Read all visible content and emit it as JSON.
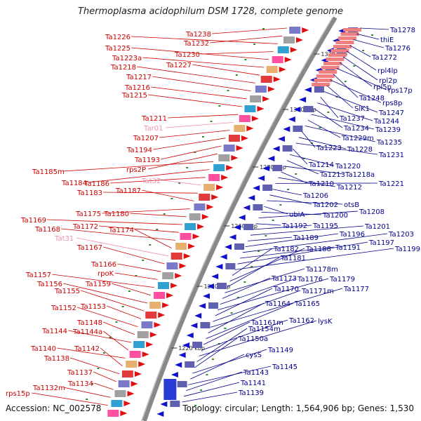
{
  "title": "Thermoplasma acidophilum DSM 1728, complete genome",
  "accession": "Accession: NC_002578",
  "topology": "Topology: circular; Length: 1,564,906 bp; Genes: 1,530",
  "colors": {
    "left_label": "#cc0000",
    "right_label": "#00008b",
    "rna_label": "#f08fb0",
    "backbone": "#888888"
  },
  "scale_labels": [
    "1320 kbp",
    "1300 kbp",
    "1280 kbp",
    "1260 kbp",
    "1240 kbp",
    "1220 kbp"
  ],
  "left_labels": [
    "Ta1238",
    "Ta1232",
    "Ta1226",
    "Ta1230",
    "Ta1225",
    "Ta1223a",
    "Ta1227",
    "Ta1218",
    "Ta1217",
    "Ta1216",
    "Ta1215",
    "Ta1211",
    "Tar01",
    "Ta1207",
    "Ta1194",
    "Ta1193",
    "rps2P",
    "Ta1185m",
    "Ta1184",
    "Ta1186",
    "Tat32",
    "Ta1183",
    "Ta1187",
    "Ta1175",
    "Ta1180",
    "Ta1169",
    "Ta1172",
    "Ta1168",
    "Ta1174",
    "Tat31",
    "Ta1167",
    "Ta1166",
    "rpoK",
    "Ta1157",
    "Ta1159",
    "Ta1156",
    "Ta1155",
    "Ta1153",
    "Ta1152",
    "Ta1148",
    "Ta1144",
    "Ta1144a",
    "Ta1140",
    "Ta1142",
    "Ta1138",
    "Ta1137",
    "Ta1134",
    "Ta1132m",
    "rps15p"
  ],
  "right_labels": [
    "Ta1278",
    "thiE",
    "Ta1276",
    "Ta1272",
    "rpl4lp",
    "rpl2p",
    "rpl5p",
    "rps17p",
    "Ta1248",
    "rps8p",
    "SlK1",
    "Ta1247",
    "Ta1237",
    "Ta1244",
    "Ta1234",
    "Ta1239",
    "Ta1229m",
    "Ta1235",
    "Ta1223",
    "Ta1228",
    "Ta1231",
    "Ta1214",
    "Ta1220",
    "Ta1213",
    "Ta1218a",
    "Ta1210",
    "Ta1212",
    "Ta1221",
    "Ta1206",
    "Ta1202",
    "otsB",
    "ubiA",
    "Ta1200",
    "Ta1208",
    "Ta1192",
    "Ta1195",
    "Ta1201",
    "Ta1189",
    "Ta1196",
    "Ta1203",
    "Ta1191",
    "Ta1197",
    "Ta1199",
    "Ta1182",
    "Ta1188",
    "Ta1181",
    "Ta1178m",
    "Ta1173",
    "Ta1176",
    "Ta1179",
    "Ta1170",
    "Ta1171m",
    "Ta1177",
    "Ta1164",
    "Ta1165",
    "Ta1161m",
    "Ta1162",
    "lysK",
    "Ta1154m",
    "Ta1150a",
    "Ta1149",
    "cysS",
    "Ta1145",
    "Ta1143",
    "Ta1141",
    "Ta1139"
  ]
}
